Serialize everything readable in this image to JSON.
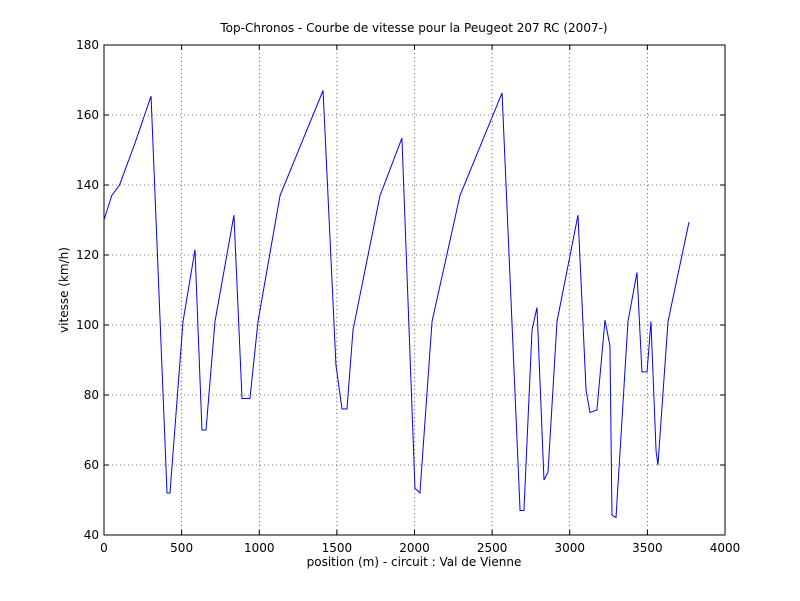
{
  "chart_data": {
    "type": "line",
    "title": "Top-Chronos - Courbe de vitesse pour la Peugeot 207 RC (2007-)",
    "x_label": "position (m) - circuit : Val de Vienne",
    "y_label": "vitesse (km/h)",
    "xlim": [
      0,
      4000
    ],
    "xticks": [
      0,
      500,
      1000,
      1500,
      2000,
      2500,
      3000,
      3500,
      4000
    ],
    "ylim": [
      40,
      180
    ],
    "yticks": [
      40,
      60,
      80,
      100,
      120,
      140,
      160,
      180
    ],
    "grid": true,
    "x": [
      0,
      50,
      100,
      200,
      303,
      406,
      425,
      509,
      586,
      631,
      657,
      715,
      837,
      889,
      940,
      992,
      1134,
      1411,
      1494,
      1533,
      1565,
      1604,
      1778,
      1919,
      2003,
      2035,
      2113,
      2293,
      2564,
      2680,
      2705,
      2757,
      2789,
      2834,
      2860,
      2918,
      3053,
      3105,
      3130,
      3175,
      3227,
      3259,
      3272,
      3298,
      3375,
      3433,
      3465,
      3498,
      3523,
      3556,
      3568,
      3633,
      3768
    ],
    "series": [
      {
        "color": "#0000ff",
        "values": [
          130,
          137,
          140,
          152,
          165.4,
          52,
          52,
          101,
          121.5,
          70,
          70,
          101,
          131.4,
          79,
          79,
          101,
          137,
          167,
          88.6,
          76,
          76,
          98.6,
          137,
          153.4,
          53.4,
          52,
          101,
          137,
          166.3,
          47,
          47,
          98.6,
          105,
          55.7,
          58,
          101,
          131.4,
          81.4,
          75,
          75.7,
          101.4,
          94,
          45.7,
          45,
          101,
          115,
          86.6,
          86.6,
          101,
          64,
          60,
          101,
          129.4
        ]
      }
    ]
  }
}
